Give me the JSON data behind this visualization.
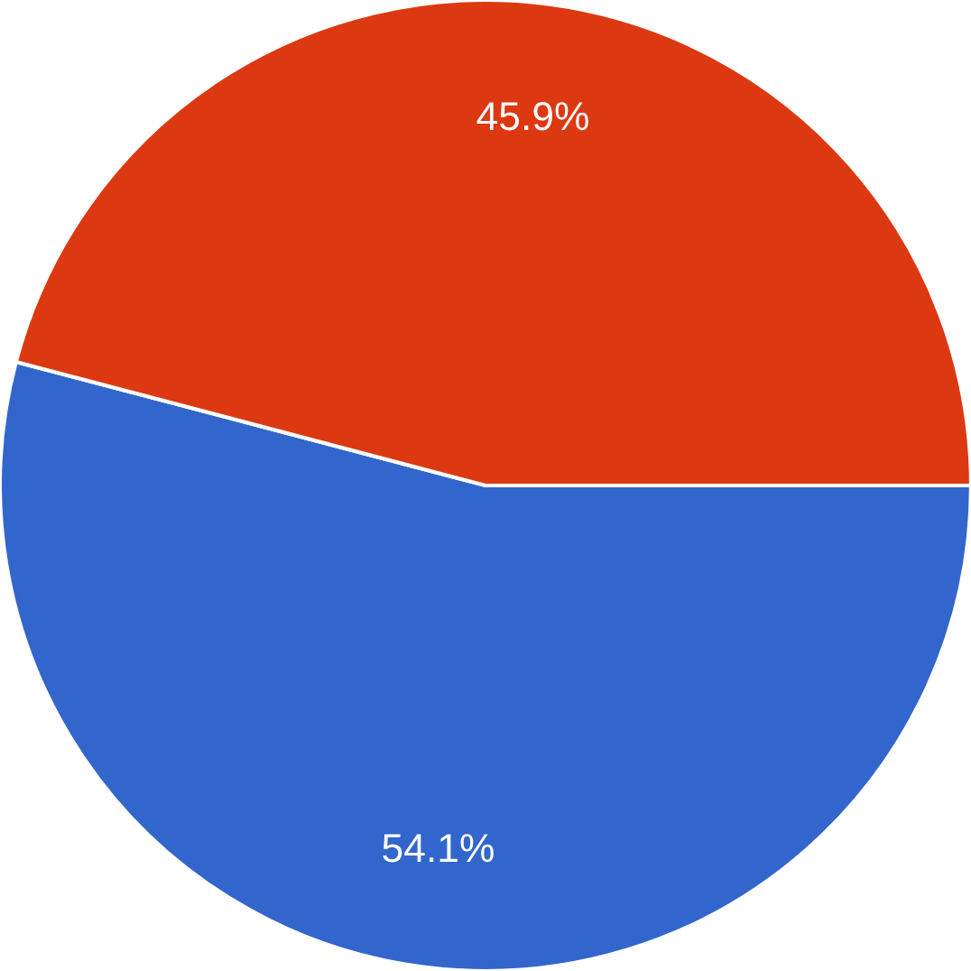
{
  "chart_data": {
    "type": "pie",
    "categories": [
      null,
      null
    ],
    "values": [
      54.1,
      45.9
    ],
    "colors": [
      "#3366cc",
      "#dc3912"
    ],
    "value_labels": [
      "54.1%",
      "45.9%"
    ]
  }
}
